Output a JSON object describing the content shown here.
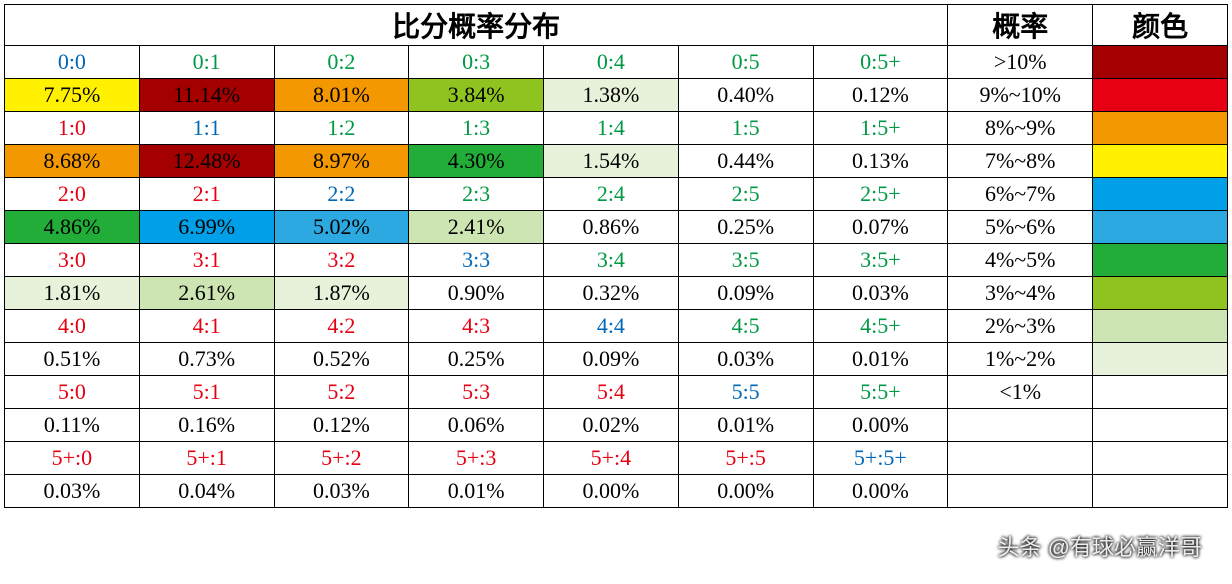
{
  "colors": {
    "text_red": "#e60012",
    "text_blue": "#0068b7",
    "text_green": "#009944",
    "text_black": "#000000",
    "bg_darkred": "#a40000",
    "bg_red": "#e60012",
    "bg_orange": "#f39800",
    "bg_yellow": "#fff100",
    "bg_blue": "#00a0e9",
    "bg_cyan": "#2ca9e1",
    "bg_green": "#22ac38",
    "bg_lgreen": "#8fc31f",
    "bg_pgreen": "#cde5b2",
    "bg_vpgreen": "#e8f2da",
    "bg_white": "#ffffff"
  },
  "headers": {
    "main": "比分概率分布",
    "prob": "概率",
    "color": "颜色"
  },
  "col_widths": [
    "10.6%",
    "10.6%",
    "10.6%",
    "10.6%",
    "10.6%",
    "10.6%",
    "10.6%",
    "11.4%",
    "10.6%"
  ],
  "legend": [
    {
      "label": ">10%",
      "swatch": "bg_darkred"
    },
    {
      "label": "9%~10%",
      "swatch": "bg_red"
    },
    {
      "label": "8%~9%",
      "swatch": "bg_orange"
    },
    {
      "label": "7%~8%",
      "swatch": "bg_yellow"
    },
    {
      "label": "6%~7%",
      "swatch": "bg_blue"
    },
    {
      "label": "5%~6%",
      "swatch": "bg_cyan"
    },
    {
      "label": "4%~5%",
      "swatch": "bg_green"
    },
    {
      "label": "3%~4%",
      "swatch": "bg_lgreen"
    },
    {
      "label": "2%~3%",
      "swatch": "bg_pgreen"
    },
    {
      "label": "1%~2%",
      "swatch": "bg_vpgreen"
    },
    {
      "label": "<1%",
      "swatch": "bg_white"
    },
    {
      "label": "",
      "swatch": "bg_white"
    },
    {
      "label": "",
      "swatch": "bg_white"
    },
    {
      "label": "",
      "swatch": "bg_white"
    }
  ],
  "grid": [
    [
      {
        "t": "0:0",
        "fg": "text_blue"
      },
      {
        "t": "0:1",
        "fg": "text_green"
      },
      {
        "t": "0:2",
        "fg": "text_green"
      },
      {
        "t": "0:3",
        "fg": "text_green"
      },
      {
        "t": "0:4",
        "fg": "text_green"
      },
      {
        "t": "0:5",
        "fg": "text_green"
      },
      {
        "t": "0:5+",
        "fg": "text_green"
      }
    ],
    [
      {
        "t": "7.75%",
        "fg": "text_black",
        "bg": "bg_yellow"
      },
      {
        "t": "11.14%",
        "fg": "text_black",
        "bg": "bg_darkred"
      },
      {
        "t": "8.01%",
        "fg": "text_black",
        "bg": "bg_orange"
      },
      {
        "t": "3.84%",
        "fg": "text_black",
        "bg": "bg_lgreen"
      },
      {
        "t": "1.38%",
        "fg": "text_black",
        "bg": "bg_vpgreen"
      },
      {
        "t": "0.40%",
        "fg": "text_black"
      },
      {
        "t": "0.12%",
        "fg": "text_black"
      }
    ],
    [
      {
        "t": "1:0",
        "fg": "text_red"
      },
      {
        "t": "1:1",
        "fg": "text_blue"
      },
      {
        "t": "1:2",
        "fg": "text_green"
      },
      {
        "t": "1:3",
        "fg": "text_green"
      },
      {
        "t": "1:4",
        "fg": "text_green"
      },
      {
        "t": "1:5",
        "fg": "text_green"
      },
      {
        "t": "1:5+",
        "fg": "text_green"
      }
    ],
    [
      {
        "t": "8.68%",
        "fg": "text_black",
        "bg": "bg_orange"
      },
      {
        "t": "12.48%",
        "fg": "text_black",
        "bg": "bg_darkred"
      },
      {
        "t": "8.97%",
        "fg": "text_black",
        "bg": "bg_orange"
      },
      {
        "t": "4.30%",
        "fg": "text_black",
        "bg": "bg_green"
      },
      {
        "t": "1.54%",
        "fg": "text_black",
        "bg": "bg_vpgreen"
      },
      {
        "t": "0.44%",
        "fg": "text_black"
      },
      {
        "t": "0.13%",
        "fg": "text_black"
      }
    ],
    [
      {
        "t": "2:0",
        "fg": "text_red"
      },
      {
        "t": "2:1",
        "fg": "text_red"
      },
      {
        "t": "2:2",
        "fg": "text_blue"
      },
      {
        "t": "2:3",
        "fg": "text_green"
      },
      {
        "t": "2:4",
        "fg": "text_green"
      },
      {
        "t": "2:5",
        "fg": "text_green"
      },
      {
        "t": "2:5+",
        "fg": "text_green"
      }
    ],
    [
      {
        "t": "4.86%",
        "fg": "text_black",
        "bg": "bg_green"
      },
      {
        "t": "6.99%",
        "fg": "text_black",
        "bg": "bg_blue"
      },
      {
        "t": "5.02%",
        "fg": "text_black",
        "bg": "bg_cyan"
      },
      {
        "t": "2.41%",
        "fg": "text_black",
        "bg": "bg_pgreen"
      },
      {
        "t": "0.86%",
        "fg": "text_black"
      },
      {
        "t": "0.25%",
        "fg": "text_black"
      },
      {
        "t": "0.07%",
        "fg": "text_black"
      }
    ],
    [
      {
        "t": "3:0",
        "fg": "text_red"
      },
      {
        "t": "3:1",
        "fg": "text_red"
      },
      {
        "t": "3:2",
        "fg": "text_red"
      },
      {
        "t": "3:3",
        "fg": "text_blue"
      },
      {
        "t": "3:4",
        "fg": "text_green"
      },
      {
        "t": "3:5",
        "fg": "text_green"
      },
      {
        "t": "3:5+",
        "fg": "text_green"
      }
    ],
    [
      {
        "t": "1.81%",
        "fg": "text_black",
        "bg": "bg_vpgreen"
      },
      {
        "t": "2.61%",
        "fg": "text_black",
        "bg": "bg_pgreen"
      },
      {
        "t": "1.87%",
        "fg": "text_black",
        "bg": "bg_vpgreen"
      },
      {
        "t": "0.90%",
        "fg": "text_black"
      },
      {
        "t": "0.32%",
        "fg": "text_black"
      },
      {
        "t": "0.09%",
        "fg": "text_black"
      },
      {
        "t": "0.03%",
        "fg": "text_black"
      }
    ],
    [
      {
        "t": "4:0",
        "fg": "text_red"
      },
      {
        "t": "4:1",
        "fg": "text_red"
      },
      {
        "t": "4:2",
        "fg": "text_red"
      },
      {
        "t": "4:3",
        "fg": "text_red"
      },
      {
        "t": "4:4",
        "fg": "text_blue"
      },
      {
        "t": "4:5",
        "fg": "text_green"
      },
      {
        "t": "4:5+",
        "fg": "text_green"
      }
    ],
    [
      {
        "t": "0.51%",
        "fg": "text_black"
      },
      {
        "t": "0.73%",
        "fg": "text_black"
      },
      {
        "t": "0.52%",
        "fg": "text_black"
      },
      {
        "t": "0.25%",
        "fg": "text_black"
      },
      {
        "t": "0.09%",
        "fg": "text_black"
      },
      {
        "t": "0.03%",
        "fg": "text_black"
      },
      {
        "t": "0.01%",
        "fg": "text_black"
      }
    ],
    [
      {
        "t": "5:0",
        "fg": "text_red"
      },
      {
        "t": "5:1",
        "fg": "text_red"
      },
      {
        "t": "5:2",
        "fg": "text_red"
      },
      {
        "t": "5:3",
        "fg": "text_red"
      },
      {
        "t": "5:4",
        "fg": "text_red"
      },
      {
        "t": "5:5",
        "fg": "text_blue"
      },
      {
        "t": "5:5+",
        "fg": "text_green"
      }
    ],
    [
      {
        "t": "0.11%",
        "fg": "text_black"
      },
      {
        "t": "0.16%",
        "fg": "text_black"
      },
      {
        "t": "0.12%",
        "fg": "text_black"
      },
      {
        "t": "0.06%",
        "fg": "text_black"
      },
      {
        "t": "0.02%",
        "fg": "text_black"
      },
      {
        "t": "0.01%",
        "fg": "text_black"
      },
      {
        "t": "0.00%",
        "fg": "text_black"
      }
    ],
    [
      {
        "t": "5+:0",
        "fg": "text_red"
      },
      {
        "t": "5+:1",
        "fg": "text_red"
      },
      {
        "t": "5+:2",
        "fg": "text_red"
      },
      {
        "t": "5+:3",
        "fg": "text_red"
      },
      {
        "t": "5+:4",
        "fg": "text_red"
      },
      {
        "t": "5+:5",
        "fg": "text_red"
      },
      {
        "t": "5+:5+",
        "fg": "text_blue"
      }
    ],
    [
      {
        "t": "0.03%",
        "fg": "text_black"
      },
      {
        "t": "0.04%",
        "fg": "text_black"
      },
      {
        "t": "0.03%",
        "fg": "text_black"
      },
      {
        "t": "0.01%",
        "fg": "text_black"
      },
      {
        "t": "0.00%",
        "fg": "text_black"
      },
      {
        "t": "0.00%",
        "fg": "text_black"
      },
      {
        "t": "0.00%",
        "fg": "text_black"
      }
    ]
  ],
  "watermark": "头条 @有球必赢洋哥"
}
